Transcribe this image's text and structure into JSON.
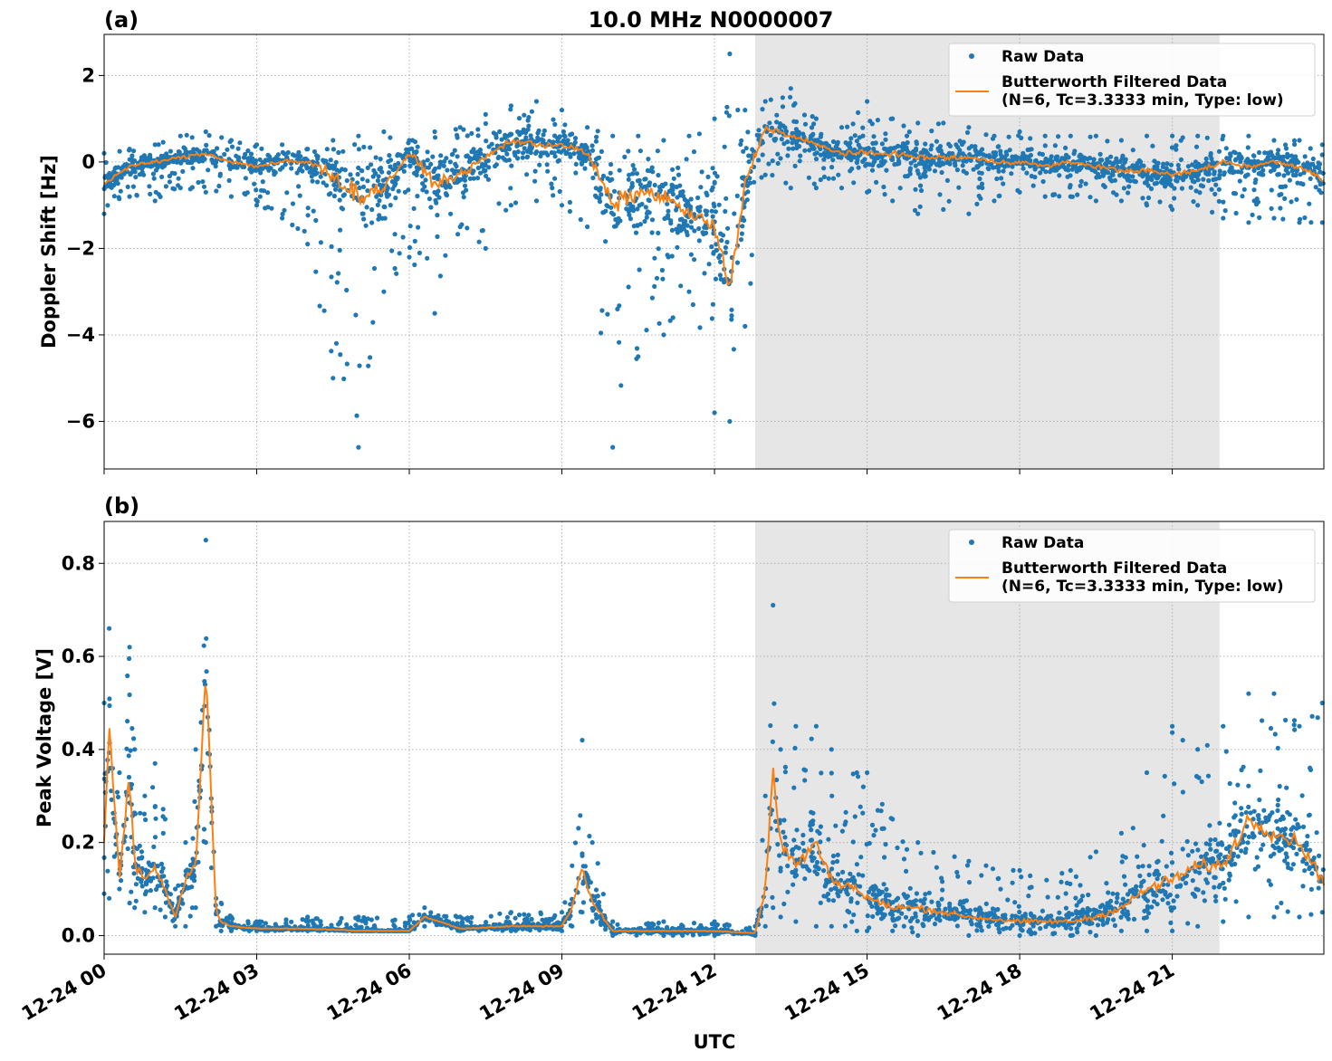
{
  "figure": {
    "title": "10.0 MHz N0000007",
    "xlabel": "UTC"
  },
  "chart_data": [
    {
      "type": "scatter",
      "panel_label": "(a)",
      "ylabel": "Doppler Shift [Hz]",
      "xlim": [
        "12-24 00:00",
        "12-24 23:59"
      ],
      "ylim": [
        -7.1,
        2.95
      ],
      "yticks": [
        2,
        0,
        -2,
        -4,
        -6
      ],
      "ytick_labels": [
        "2",
        "0",
        "−2",
        "−4",
        "−6"
      ],
      "xticks": [
        "12-24 00",
        "12-24 03",
        "12-24 06",
        "12-24 09",
        "12-24 12",
        "12-24 15",
        "12-24 18",
        "12-24 21"
      ],
      "xtick_hours": [
        0,
        3,
        6,
        9,
        12,
        15,
        18,
        21
      ],
      "shaded_span_hours": [
        12.8,
        21.93
      ],
      "grid": true,
      "legend_position": "top-right",
      "legend": [
        {
          "label": "Raw Data",
          "color": "#1f77b4",
          "marker": "dot"
        },
        {
          "label": "Butterworth Filtered Data\n(N=6, Tc=3.3333 min, Type: low)",
          "color": "#ff7f0e",
          "marker": "line"
        }
      ],
      "series": [
        {
          "name": "Raw Data",
          "color": "#1f77b4",
          "x_hours": [
            0,
            0.5,
            1.0,
            1.5,
            2.0,
            2.5,
            3.0,
            3.5,
            4.0,
            4.5,
            5.0,
            5.5,
            6.0,
            6.5,
            7.0,
            7.5,
            8.0,
            8.5,
            9.0,
            9.5,
            10.0,
            10.5,
            11.0,
            11.5,
            12.0,
            12.3,
            12.6,
            13.0,
            13.5,
            14.0,
            14.5,
            15.0,
            15.5,
            16.0,
            16.5,
            17.0,
            17.5,
            18.0,
            18.5,
            19.0,
            19.5,
            20.0,
            20.5,
            21.0,
            21.5,
            22.0,
            22.5,
            23.0,
            23.5,
            23.95
          ],
          "upper": [
            0.2,
            0.3,
            0.4,
            0.6,
            0.7,
            0.5,
            0.4,
            0.4,
            0.3,
            0.5,
            0.6,
            0.7,
            0.5,
            0.7,
            0.8,
            1.1,
            1.3,
            1.4,
            1.2,
            0.8,
            0.6,
            0.6,
            0.5,
            0.6,
            1.0,
            2.5,
            1.2,
            1.4,
            1.7,
            1.0,
            0.8,
            1.4,
            1.0,
            0.9,
            0.9,
            0.8,
            0.6,
            0.7,
            0.6,
            0.6,
            0.6,
            0.5,
            0.6,
            0.6,
            0.6,
            0.6,
            0.6,
            0.5,
            0.5,
            0.4
          ],
          "lower": [
            -1.2,
            -0.8,
            -0.9,
            -0.6,
            -0.7,
            -0.8,
            -1.0,
            -1.3,
            -1.9,
            -5.0,
            -6.6,
            -3.0,
            -2.2,
            -3.5,
            -1.5,
            -2.0,
            -1.0,
            -0.9,
            -1.0,
            -1.5,
            -6.6,
            -4.5,
            -4.0,
            -3.0,
            -5.8,
            -6.0,
            -3.8,
            -0.3,
            -0.6,
            -0.6,
            -0.6,
            -0.7,
            -0.9,
            -1.2,
            -1.1,
            -1.2,
            -0.9,
            -0.7,
            -0.8,
            -0.8,
            -0.9,
            -0.9,
            -1.0,
            -1.1,
            -1.0,
            -1.3,
            -1.4,
            -1.3,
            -1.4,
            -1.4
          ]
        },
        {
          "name": "Butterworth Filtered Data\n(N=6, Tc=3.3333 min, Type: low)",
          "color": "#ff7f0e",
          "x_hours": [
            0,
            0.5,
            1.0,
            1.5,
            2.0,
            2.5,
            3.0,
            3.5,
            4.0,
            4.5,
            5.0,
            5.5,
            6.0,
            6.5,
            7.0,
            7.5,
            8.0,
            8.5,
            9.0,
            9.5,
            10.0,
            10.5,
            11.0,
            11.5,
            12.0,
            12.3,
            12.6,
            13.0,
            13.5,
            14.0,
            14.5,
            15.0,
            15.5,
            16.0,
            16.5,
            17.0,
            17.5,
            18.0,
            18.5,
            19.0,
            19.5,
            20.0,
            20.5,
            21.0,
            21.5,
            22.0,
            22.5,
            23.0,
            23.5,
            23.95
          ],
          "values": [
            -0.5,
            -0.1,
            0.0,
            0.1,
            0.2,
            0.0,
            -0.1,
            0.0,
            0.0,
            -0.3,
            -0.8,
            -0.6,
            0.2,
            -0.5,
            -0.3,
            0.1,
            0.5,
            0.4,
            0.4,
            0.2,
            -1.0,
            -0.7,
            -0.8,
            -1.2,
            -1.5,
            -3.0,
            -0.5,
            0.8,
            0.6,
            0.4,
            0.2,
            0.2,
            0.2,
            0.1,
            0.1,
            0.1,
            0.0,
            0.0,
            -0.1,
            0.0,
            -0.1,
            -0.2,
            -0.2,
            -0.3,
            -0.2,
            0.0,
            -0.1,
            0.0,
            -0.1,
            -0.4
          ]
        }
      ]
    },
    {
      "type": "scatter",
      "panel_label": "(b)",
      "ylabel": "Peak Voltage [V]",
      "xlim": [
        "12-24 00:00",
        "12-24 23:59"
      ],
      "ylim": [
        -0.04,
        0.89
      ],
      "yticks": [
        0.0,
        0.2,
        0.4,
        0.6,
        0.8
      ],
      "ytick_labels": [
        "0.0",
        "0.2",
        "0.4",
        "0.6",
        "0.8"
      ],
      "xticks": [
        "12-24 00",
        "12-24 03",
        "12-24 06",
        "12-24 09",
        "12-24 12",
        "12-24 15",
        "12-24 18",
        "12-24 21"
      ],
      "xtick_hours": [
        0,
        3,
        6,
        9,
        12,
        15,
        18,
        21
      ],
      "shaded_span_hours": [
        12.8,
        21.93
      ],
      "grid": true,
      "legend_position": "top-right",
      "legend": [
        {
          "label": "Raw Data",
          "color": "#1f77b4",
          "marker": "dot"
        },
        {
          "label": "Butterworth Filtered Data\n(N=6, Tc=3.3333 min, Type: low)",
          "color": "#ff7f0e",
          "marker": "line"
        }
      ],
      "series": [
        {
          "name": "Raw Data",
          "color": "#1f77b4",
          "x_hours": [
            0,
            0.1,
            0.3,
            0.5,
            0.6,
            0.8,
            1.0,
            1.2,
            1.4,
            1.6,
            1.8,
            2.0,
            2.2,
            2.3,
            2.5,
            3.0,
            4.0,
            5.0,
            6.0,
            6.3,
            7.0,
            8.0,
            9.0,
            9.2,
            9.4,
            9.6,
            10.0,
            11.0,
            12.0,
            12.8,
            13.0,
            13.15,
            13.3,
            13.6,
            14.0,
            14.3,
            14.8,
            15.0,
            15.5,
            16.0,
            17.0,
            18.0,
            19.0,
            19.5,
            20.0,
            20.5,
            21.0,
            21.5,
            22.0,
            22.5,
            23.0,
            23.5,
            23.95
          ],
          "upper": [
            0.5,
            0.66,
            0.35,
            0.62,
            0.4,
            0.3,
            0.37,
            0.25,
            0.1,
            0.2,
            0.4,
            0.85,
            0.08,
            0.07,
            0.04,
            0.03,
            0.04,
            0.04,
            0.04,
            0.06,
            0.04,
            0.05,
            0.05,
            0.15,
            0.42,
            0.2,
            0.03,
            0.03,
            0.03,
            0.02,
            0.3,
            0.71,
            0.4,
            0.45,
            0.45,
            0.4,
            0.35,
            0.35,
            0.25,
            0.2,
            0.16,
            0.14,
            0.14,
            0.18,
            0.22,
            0.35,
            0.45,
            0.4,
            0.45,
            0.52,
            0.52,
            0.45,
            0.5
          ],
          "lower": [
            0.09,
            0.08,
            0.1,
            0.07,
            0.06,
            0.05,
            0.06,
            0.04,
            0.02,
            0.02,
            0.06,
            0.2,
            0.02,
            0.01,
            0.01,
            0.01,
            0.01,
            0.01,
            0.01,
            0.02,
            0.01,
            0.01,
            0.01,
            0.02,
            0.05,
            0.03,
            0.0,
            0.0,
            0.0,
            0.0,
            0.02,
            0.06,
            0.04,
            0.03,
            0.02,
            0.02,
            0.01,
            0.01,
            0.01,
            0.0,
            0.0,
            0.0,
            0.0,
            0.0,
            0.01,
            0.01,
            0.01,
            0.02,
            0.03,
            0.04,
            0.04,
            0.04,
            0.05
          ]
        },
        {
          "name": "Butterworth Filtered Data\n(N=6, Tc=3.3333 min, Type: low)",
          "color": "#ff7f0e",
          "x_hours": [
            0,
            0.1,
            0.3,
            0.5,
            0.6,
            0.8,
            1.0,
            1.2,
            1.4,
            1.6,
            1.8,
            2.0,
            2.2,
            2.3,
            2.5,
            3.0,
            4.0,
            5.0,
            6.0,
            6.3,
            7.0,
            8.0,
            9.0,
            9.2,
            9.4,
            9.6,
            10.0,
            11.0,
            12.0,
            12.8,
            13.0,
            13.15,
            13.3,
            13.6,
            14.0,
            14.3,
            14.8,
            15.0,
            15.5,
            16.0,
            17.0,
            18.0,
            19.0,
            19.5,
            20.0,
            20.5,
            21.0,
            21.5,
            22.0,
            22.5,
            23.0,
            23.5,
            23.95
          ],
          "values": [
            0.2,
            0.45,
            0.12,
            0.35,
            0.15,
            0.12,
            0.15,
            0.1,
            0.04,
            0.12,
            0.15,
            0.57,
            0.05,
            0.03,
            0.02,
            0.015,
            0.015,
            0.01,
            0.01,
            0.04,
            0.015,
            0.02,
            0.02,
            0.06,
            0.15,
            0.07,
            0.01,
            0.01,
            0.01,
            0.005,
            0.1,
            0.35,
            0.2,
            0.15,
            0.2,
            0.12,
            0.1,
            0.08,
            0.06,
            0.06,
            0.04,
            0.03,
            0.03,
            0.04,
            0.06,
            0.1,
            0.12,
            0.15,
            0.15,
            0.25,
            0.22,
            0.2,
            0.12
          ]
        }
      ]
    }
  ]
}
